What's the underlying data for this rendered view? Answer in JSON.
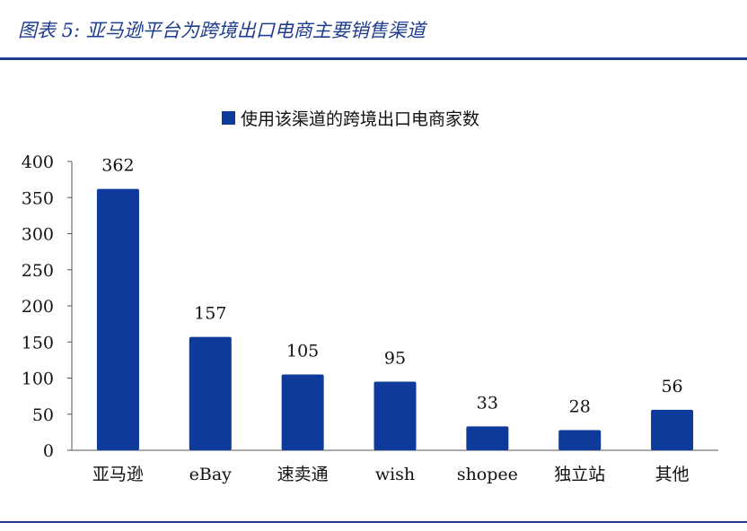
{
  "figure": {
    "title": "图表 5:  亚马逊平台为跨境出口电商主要销售渠道"
  },
  "colors": {
    "bar": "#0e3a9b",
    "title": "#1f3c8f",
    "rule": "#1f3c8f",
    "axis": "#555555"
  },
  "chart_data": {
    "type": "bar",
    "title": "",
    "xlabel": "",
    "ylabel": "",
    "ylim": [
      0,
      400
    ],
    "yticks": [
      0,
      50,
      100,
      150,
      200,
      250,
      300,
      350,
      400
    ],
    "grid": false,
    "legend_position": "top-center",
    "categories": [
      "亚马逊",
      "eBay",
      "速卖通",
      "wish",
      "shopee",
      "独立站",
      "其他"
    ],
    "series": [
      {
        "name": "使用该渠道的跨境出口电商家数",
        "values": [
          362,
          157,
          105,
          95,
          33,
          28,
          56
        ]
      }
    ]
  }
}
